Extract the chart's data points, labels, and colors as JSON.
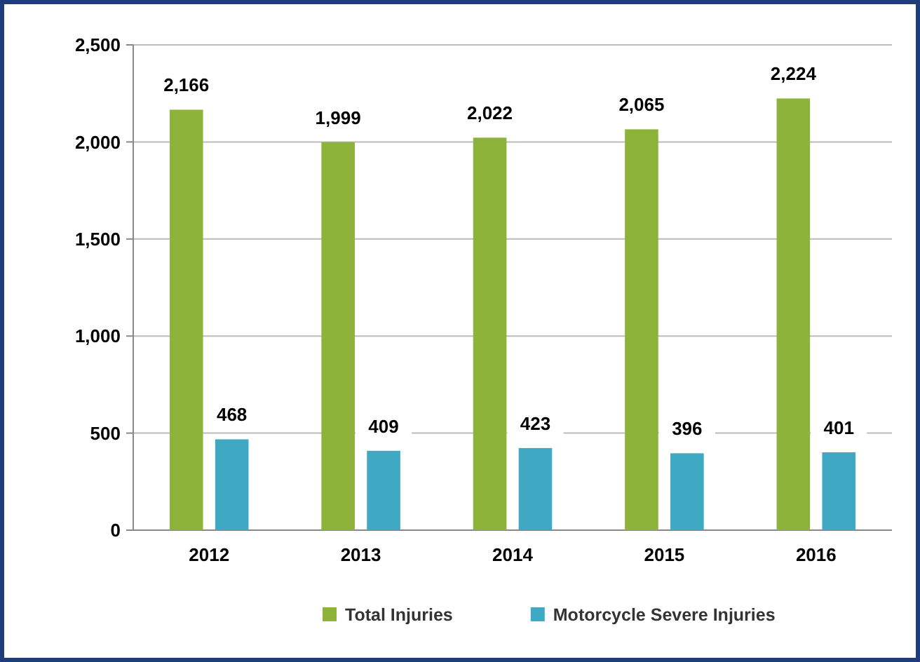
{
  "chart_data": {
    "type": "bar",
    "categories": [
      "2012",
      "2013",
      "2014",
      "2015",
      "2016"
    ],
    "series": [
      {
        "name": "Total Injuries",
        "color": "#8db33a",
        "values": [
          2166,
          1999,
          2022,
          2065,
          2224
        ],
        "value_labels": [
          "2,166",
          "1,999",
          "2,022",
          "2,065",
          "2,224"
        ]
      },
      {
        "name": "Motorcycle Severe Injuries",
        "color": "#3fa9c4",
        "values": [
          468,
          409,
          423,
          396,
          401
        ],
        "value_labels": [
          "468",
          "409",
          "423",
          "396",
          "401"
        ]
      }
    ],
    "ylim": [
      0,
      2500
    ],
    "yticks": [
      {
        "value": 0,
        "label": "0"
      },
      {
        "value": 500,
        "label": "500"
      },
      {
        "value": 1000,
        "label": "1,000"
      },
      {
        "value": 1500,
        "label": "1,500"
      },
      {
        "value": 2000,
        "label": "2,000"
      },
      {
        "value": 2500,
        "label": "2,500"
      }
    ],
    "grid": "y",
    "legend": "bottom"
  }
}
